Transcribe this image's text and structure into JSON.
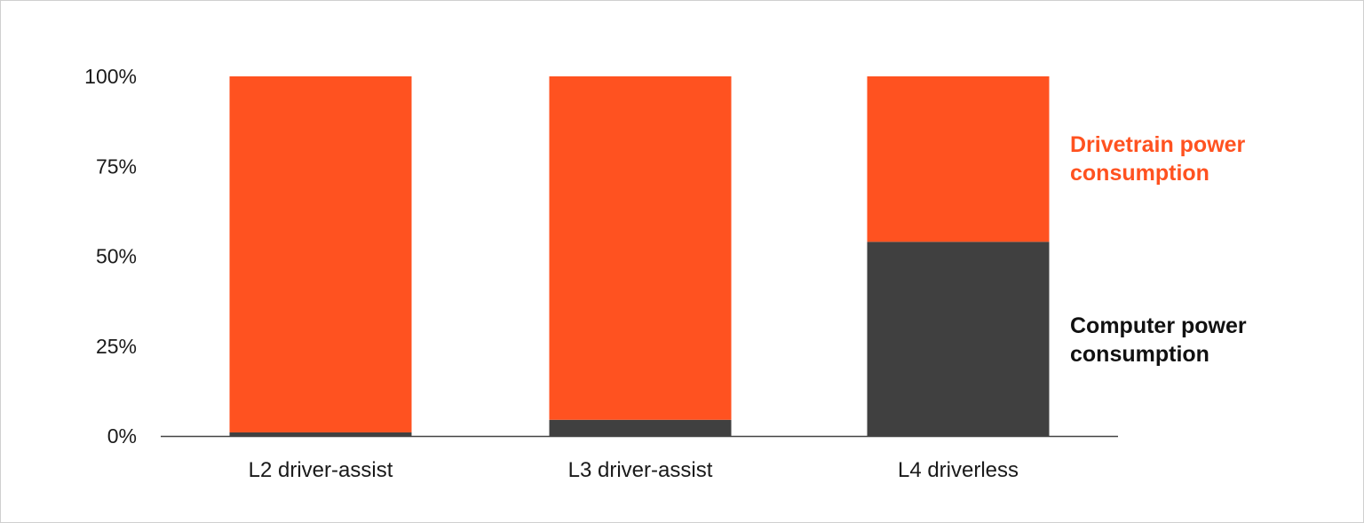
{
  "chart_data": {
    "type": "bar",
    "stacked": true,
    "categories": [
      "L2 driver-assist",
      "L3 driver-assist",
      "L4 driverless"
    ],
    "series": [
      {
        "name": "Computer power consumption",
        "color": "#404040",
        "values": [
          1,
          4.5,
          54
        ]
      },
      {
        "name": "Drivetrain power consumption",
        "color": "#ff5220",
        "values": [
          99,
          95.5,
          46
        ]
      }
    ],
    "ylim": [
      0,
      100
    ],
    "yticks": [
      0,
      25,
      50,
      75,
      100
    ],
    "ytick_labels": [
      "0%",
      "25%",
      "50%",
      "75%",
      "100%"
    ],
    "grid": false,
    "legend_placement": "right",
    "legend": [
      {
        "line1": "Drivetrain power",
        "line2": "consumption",
        "color": "#ff5220"
      },
      {
        "line1": "Computer power",
        "line2": "consumption",
        "color": "#111111"
      }
    ]
  }
}
